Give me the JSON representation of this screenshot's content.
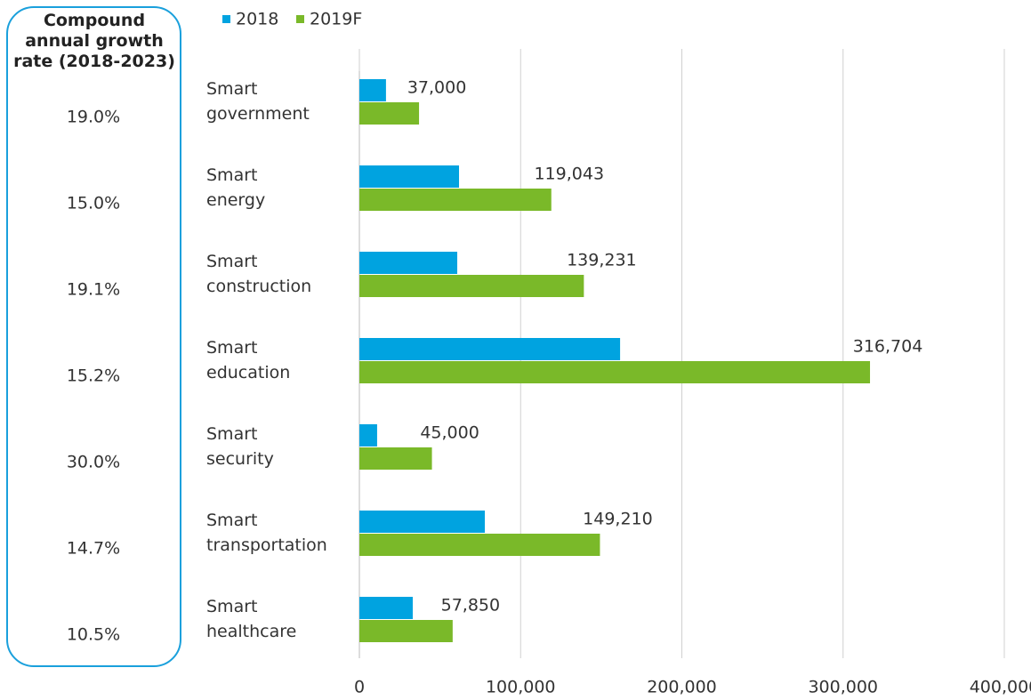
{
  "chart_data": {
    "type": "bar",
    "orientation": "horizontal",
    "categories": [
      "Smart government",
      "Smart energy",
      "Smart construction",
      "Smart education",
      "Smart security",
      "Smart transportation",
      "Smart healthcare"
    ],
    "series": [
      {
        "name": "2018",
        "color": "#00a3e0",
        "values": [
          16500,
          61800,
          60700,
          161700,
          11000,
          77800,
          33100
        ]
      },
      {
        "name": "2019F",
        "color": "#7ab929",
        "values": [
          37000,
          119043,
          139231,
          316704,
          45000,
          149210,
          57850
        ],
        "value_labels": [
          "37,000",
          "119,043",
          "139,231",
          "316,704",
          "45,000",
          "149,210",
          "57,850"
        ]
      }
    ],
    "xlim": [
      0,
      400000
    ],
    "xticks": [
      0,
      {
        "value": 100000,
        "label": "100,000"
      },
      {
        "value": 200000,
        "label": "200,000"
      },
      {
        "value": 300000,
        "label": "300,000"
      },
      {
        "value": 400000,
        "label": "400,000"
      }
    ],
    "grid": true,
    "legend": "top",
    "cagr": {
      "title": "Compound annual growth rate (2018-2023)",
      "values": [
        19.0,
        15.0,
        19.1,
        15.2,
        30.0,
        14.7,
        10.5
      ],
      "value_labels": [
        "19.0%",
        "15.0%",
        "19.1%",
        "15.2%",
        "30.0%",
        "14.7%",
        "10.5%"
      ],
      "color": "#1aa0dc"
    }
  }
}
